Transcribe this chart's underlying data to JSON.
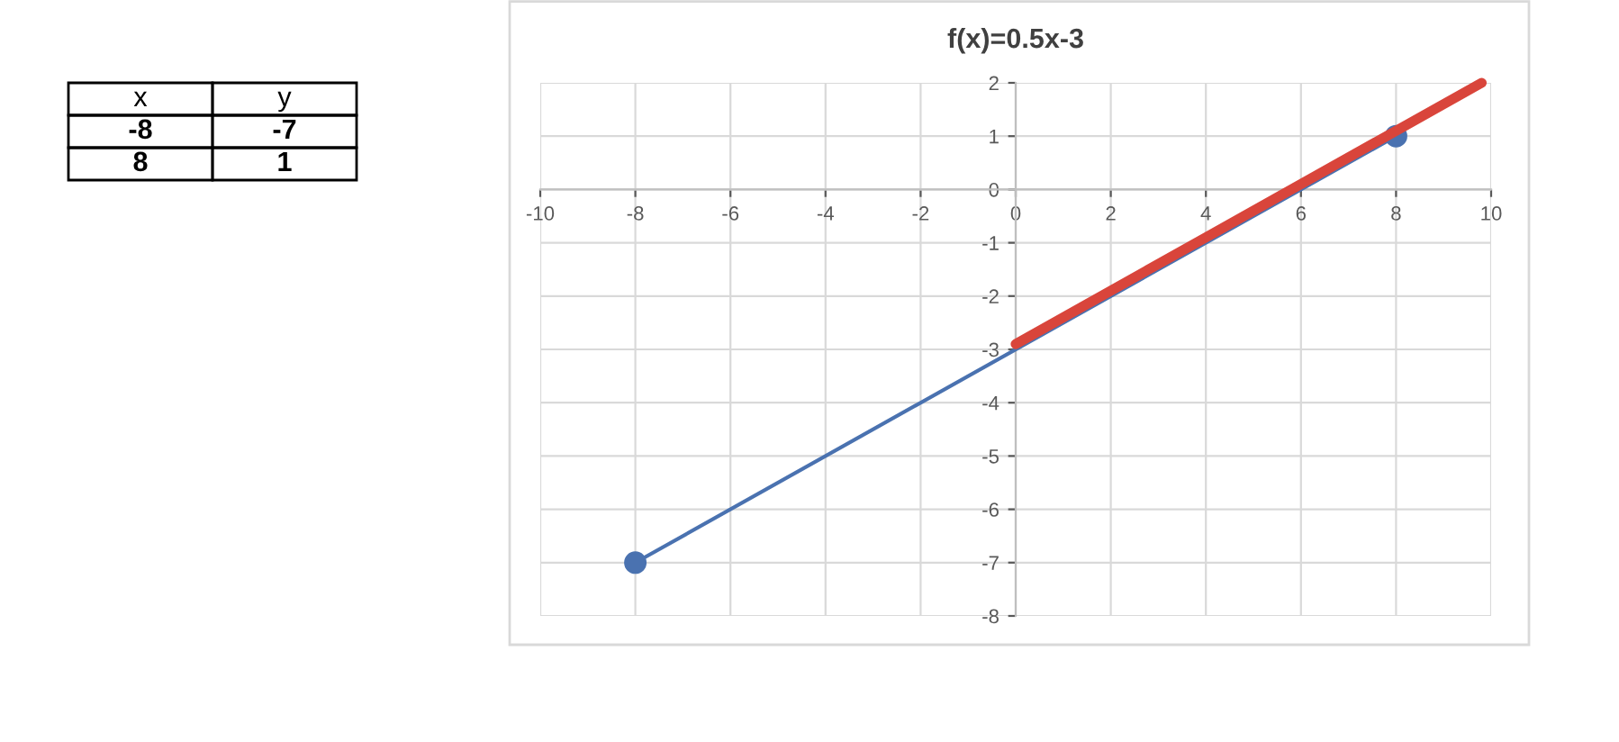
{
  "chart_data": {
    "type": "line",
    "title": "f(x)=0.5x-3",
    "series": [
      {
        "color": "#4a72b0",
        "x": [
          -8,
          8
        ],
        "values": [
          -7,
          1
        ],
        "marker": "circle"
      },
      {
        "color": "#d9453b",
        "x": [
          0,
          9.8
        ],
        "values": [
          -2.9,
          2.0
        ],
        "marker": "none"
      }
    ],
    "xlim": [
      -10,
      10
    ],
    "xticks": [
      -10,
      -8,
      -6,
      -4,
      -2,
      0,
      2,
      4,
      6,
      8,
      10
    ],
    "ylim": [
      -8,
      2
    ],
    "yticks": [
      -8,
      -7,
      -6,
      -5,
      -4,
      -3,
      -2,
      -1,
      0,
      1,
      2
    ],
    "grid": true,
    "line_style": "solid",
    "annotations": [
      "x",
      "y",
      "-8",
      "-7",
      "8",
      "1"
    ]
  }
}
